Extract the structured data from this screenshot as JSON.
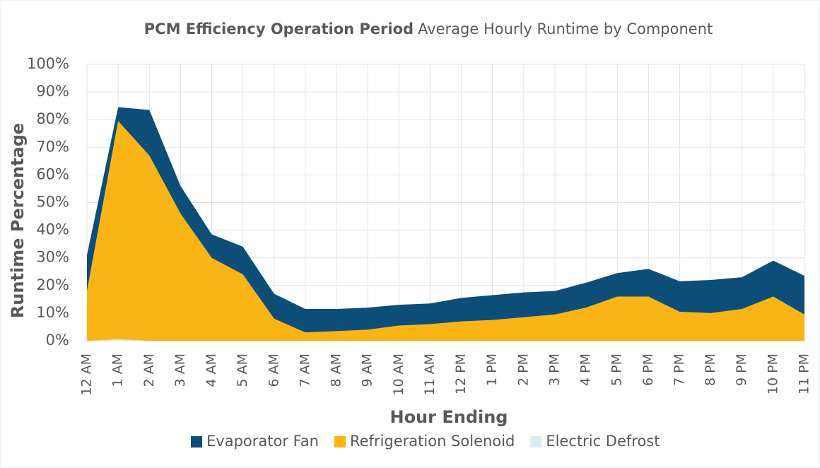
{
  "chart_data": {
    "type": "stacked_area",
    "title_bold": "PCM Efficiency Operation Period",
    "title": "Average Hourly Runtime by Component",
    "x_label": "Hour Ending",
    "y_label": "Runtime Percentage",
    "categories": [
      "12 AM",
      "1 AM",
      "2 AM",
      "3 AM",
      "4 AM",
      "5 AM",
      "6 AM",
      "7 AM",
      "8 AM",
      "9 AM",
      "10 AM",
      "11 AM",
      "12 PM",
      "1 PM",
      "2 PM",
      "3 PM",
      "4 PM",
      "5 PM",
      "6 PM",
      "7 PM",
      "8 PM",
      "9 PM",
      "10 PM",
      "11 PM"
    ],
    "series": [
      {
        "name": "Evaporator Fan",
        "color": "#0d4e78",
        "values": [
          13,
          5,
          16.5,
          10,
          8.5,
          10,
          9,
          8.5,
          8,
          8,
          7.5,
          7.5,
          8.5,
          9,
          9,
          8.5,
          9,
          8.5,
          10,
          11,
          12,
          11.5,
          13,
          14
        ]
      },
      {
        "name": "Refrigeration Solenoid",
        "color": "#fbb416",
        "values": [
          18,
          79,
          67,
          46,
          30,
          24,
          8,
          3,
          3.5,
          4,
          5.5,
          6,
          7,
          7.5,
          8.5,
          9.5,
          12,
          16,
          16,
          10.5,
          10,
          11.5,
          16,
          9.5
        ]
      },
      {
        "name": "Electric Defrost",
        "color": "#d8eef2",
        "values": [
          0,
          0.5,
          0,
          0,
          0,
          0,
          0,
          0,
          0,
          0,
          0,
          0,
          0,
          0,
          0,
          0,
          0,
          0,
          0,
          0,
          0,
          0,
          0,
          0
        ]
      }
    ],
    "stack_order": "bottom_to_top_reversed",
    "ylim": [
      0,
      100
    ],
    "yticks": [
      {
        "value": 0,
        "label": "0%"
      },
      {
        "value": 10,
        "label": "10%"
      },
      {
        "value": 20,
        "label": "20%"
      },
      {
        "value": 30,
        "label": "30%"
      },
      {
        "value": 40,
        "label": "40%"
      },
      {
        "value": 50,
        "label": "50%"
      },
      {
        "value": 60,
        "label": "60%"
      },
      {
        "value": 70,
        "label": "70%"
      },
      {
        "value": 80,
        "label": "80%"
      },
      {
        "value": 90,
        "label": "90%"
      },
      {
        "value": 100,
        "label": "100%"
      }
    ],
    "grid": true,
    "legend": "bottom"
  }
}
